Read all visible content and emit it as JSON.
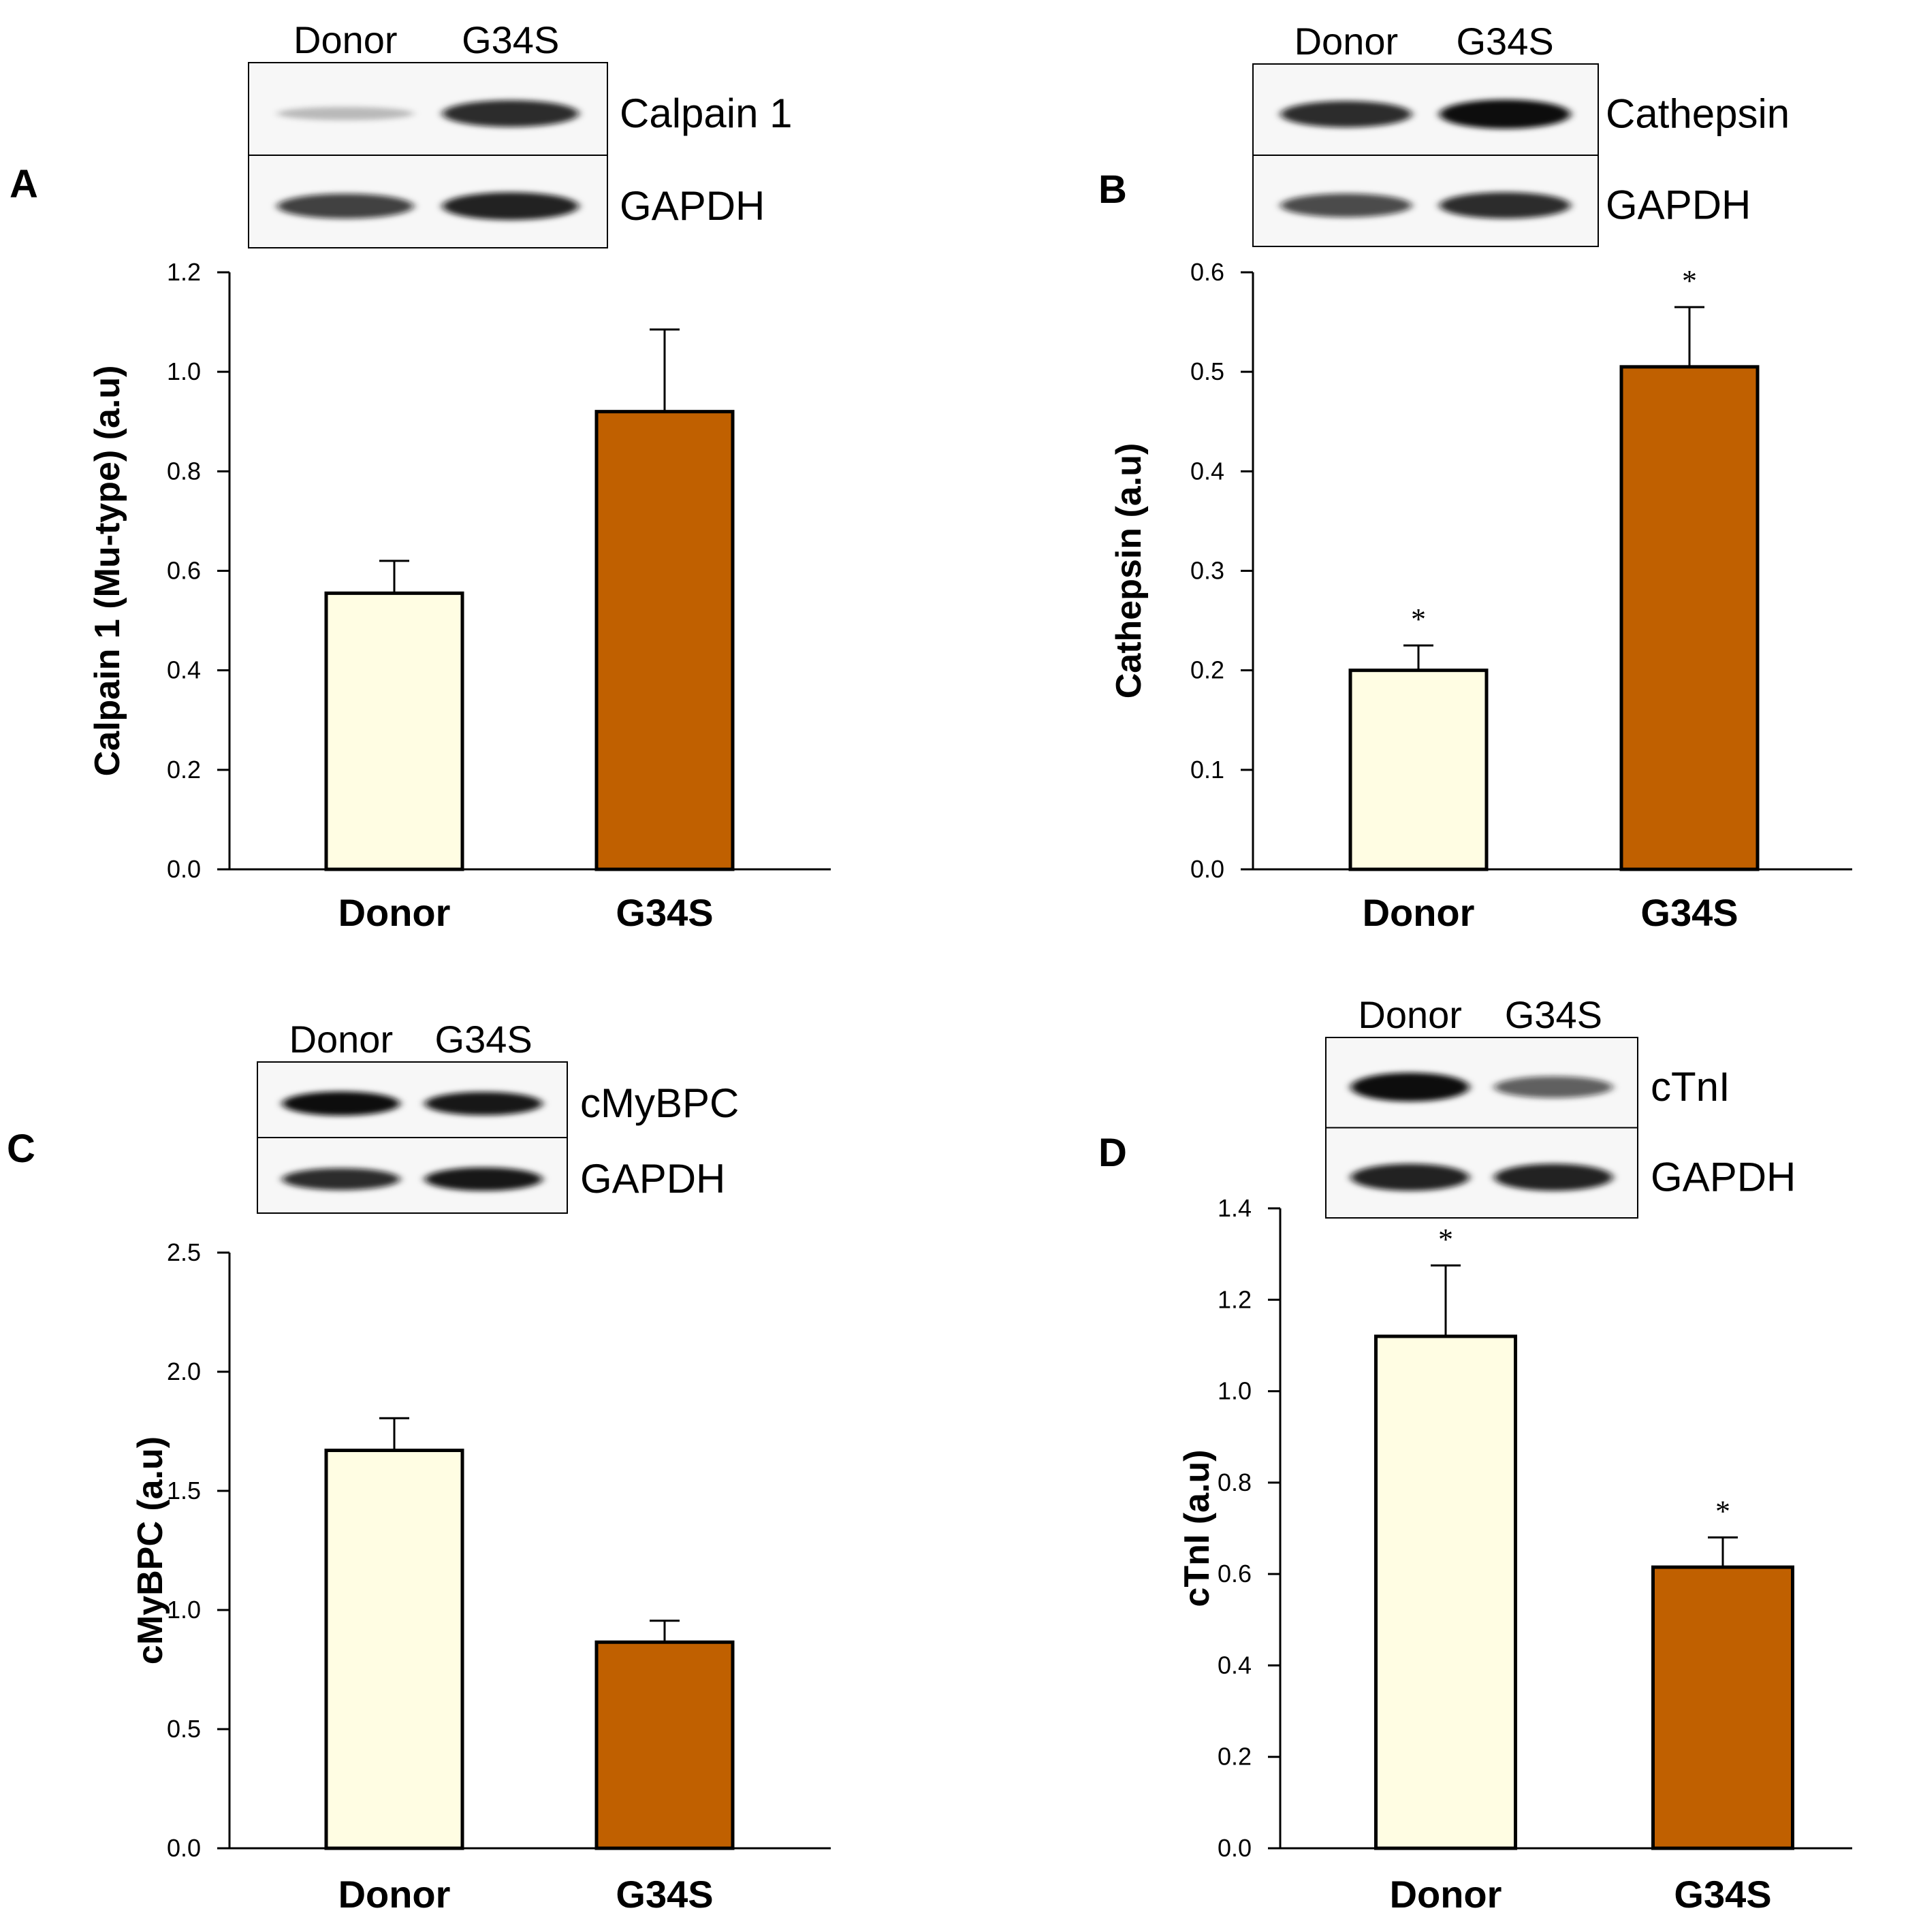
{
  "colors": {
    "donor_fill": "#fffde3",
    "g34s_fill": "#c06000",
    "bar_stroke": "#000000",
    "blot_band": "#111111",
    "blot_background": "#f7f7f7"
  },
  "chart_data": [
    {
      "panel": "A",
      "type": "bar",
      "categories": [
        "Donor",
        "G34S"
      ],
      "values": [
        0.555,
        0.92
      ],
      "errors": [
        0.065,
        0.165
      ],
      "significance": [
        "",
        ""
      ],
      "ylabel": "Calpain 1 (Mu-type) (a.u)",
      "ylim": [
        0,
        1.2
      ],
      "yticks": [
        "0.0",
        "0.2",
        "0.4",
        "0.6",
        "0.8",
        "1.0",
        "1.2"
      ],
      "blot": {
        "lanes": [
          "Donor",
          "G34S"
        ],
        "rows": [
          {
            "label": "Calpain 1",
            "intensity": [
              0.12,
              0.85
            ]
          },
          {
            "label": "GAPDH",
            "intensity": [
              0.75,
              0.9
            ]
          }
        ]
      }
    },
    {
      "panel": "B",
      "type": "bar",
      "categories": [
        "Donor",
        "G34S"
      ],
      "values": [
        0.2,
        0.505
      ],
      "errors": [
        0.025,
        0.06
      ],
      "significance": [
        "*",
        "*"
      ],
      "ylabel": "Cathepsin (a.u)",
      "ylim": [
        0,
        0.6
      ],
      "yticks": [
        "0.0",
        "0.1",
        "0.2",
        "0.3",
        "0.4",
        "0.5",
        "0.6"
      ],
      "blot": {
        "lanes": [
          "Donor",
          "G34S"
        ],
        "rows": [
          {
            "label": "Cathepsin",
            "intensity": [
              0.85,
              1.0
            ]
          },
          {
            "label": "GAPDH",
            "intensity": [
              0.7,
              0.85
            ]
          }
        ]
      }
    },
    {
      "panel": "C",
      "type": "bar",
      "categories": [
        "Donor",
        "G34S"
      ],
      "values": [
        1.67,
        0.865
      ],
      "errors": [
        0.135,
        0.09
      ],
      "significance": [
        "",
        ""
      ],
      "ylabel": "cMyBPC (a.u)",
      "ylim": [
        0,
        2.5
      ],
      "yticks": [
        "0.0",
        "0.5",
        "1.0",
        "1.5",
        "2.0",
        "2.5"
      ],
      "blot": {
        "lanes": [
          "Donor",
          "G34S"
        ],
        "rows": [
          {
            "label": "cMyBPC",
            "intensity": [
              1.0,
              0.95
            ]
          },
          {
            "label": "GAPDH",
            "intensity": [
              0.85,
              0.95
            ]
          }
        ]
      }
    },
    {
      "panel": "D",
      "type": "bar",
      "categories": [
        "Donor",
        "G34S"
      ],
      "values": [
        1.12,
        0.615
      ],
      "errors": [
        0.155,
        0.065
      ],
      "significance": [
        "*",
        "*"
      ],
      "ylabel": "cTnI (a.u)",
      "ylim": [
        0,
        1.4
      ],
      "yticks": [
        "0.0",
        "0.2",
        "0.4",
        "0.6",
        "0.8",
        "1.0",
        "1.2",
        "1.4"
      ],
      "blot": {
        "lanes": [
          "Donor",
          "G34S"
        ],
        "rows": [
          {
            "label": "cTnI",
            "intensity": [
              1.0,
              0.6
            ]
          },
          {
            "label": "GAPDH",
            "intensity": [
              0.9,
              0.9
            ]
          }
        ]
      }
    }
  ]
}
